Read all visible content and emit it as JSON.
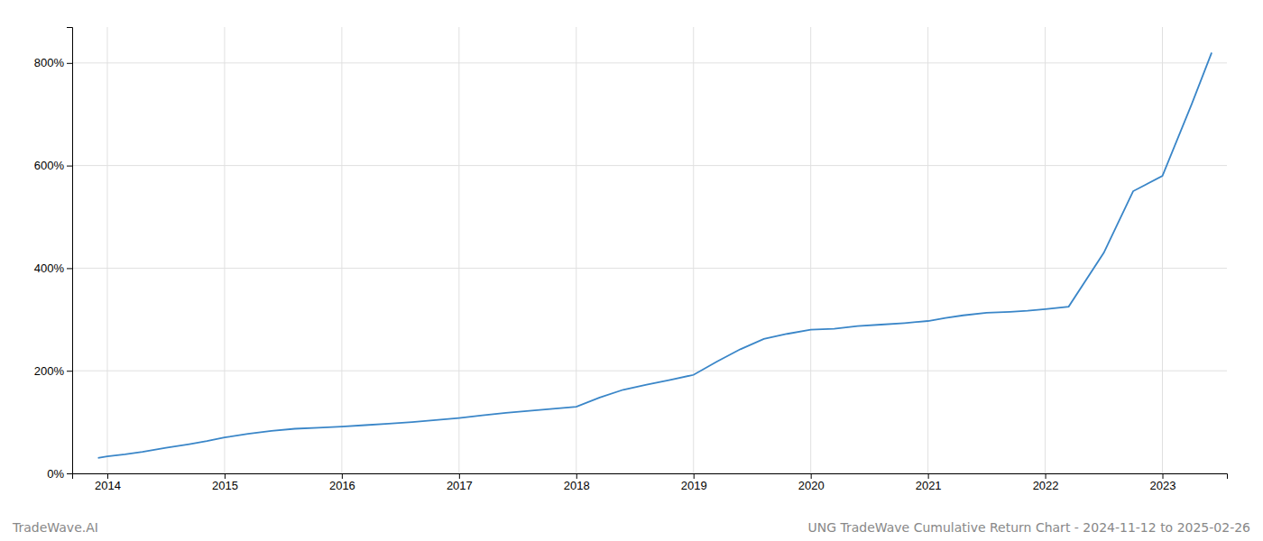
{
  "chart_data": {
    "type": "line",
    "x": [
      2013.92,
      2014.0,
      2014.15,
      2014.3,
      2014.5,
      2014.7,
      2014.85,
      2015.0,
      2015.2,
      2015.4,
      2015.6,
      2015.8,
      2016.0,
      2016.2,
      2016.4,
      2016.6,
      2016.8,
      2017.0,
      2017.2,
      2017.4,
      2017.6,
      2017.8,
      2018.0,
      2018.2,
      2018.4,
      2018.6,
      2018.8,
      2019.0,
      2019.2,
      2019.4,
      2019.6,
      2019.8,
      2020.0,
      2020.2,
      2020.4,
      2020.6,
      2020.8,
      2021.0,
      2021.15,
      2021.3,
      2021.5,
      2021.7,
      2021.85,
      2022.0,
      2022.2,
      2022.5,
      2022.75,
      2023.0,
      2023.25,
      2023.42
    ],
    "values": [
      30,
      33,
      37,
      42,
      50,
      57,
      63,
      70,
      77,
      83,
      87,
      89,
      91,
      94,
      97,
      100,
      104,
      108,
      113,
      118,
      122,
      126,
      130,
      148,
      163,
      173,
      182,
      192,
      218,
      242,
      262,
      272,
      280,
      282,
      287,
      290,
      293,
      297,
      303,
      308,
      313,
      315,
      317,
      320,
      325,
      430,
      550,
      580,
      720,
      820
    ],
    "color": "#3a86c8",
    "xlim": [
      2013.7,
      2023.55
    ],
    "xticks": [
      2014,
      2015,
      2016,
      2017,
      2018,
      2019,
      2020,
      2021,
      2022,
      2023
    ],
    "ylim": [
      0,
      870
    ],
    "yticks": [
      {
        "value": 0,
        "label": "0%"
      },
      {
        "value": 200,
        "label": "200%"
      },
      {
        "value": 400,
        "label": "400%"
      },
      {
        "value": 600,
        "label": "600%"
      },
      {
        "value": 800,
        "label": "800%"
      }
    ],
    "grid": true,
    "annotations": [
      "TradeWave.AI",
      "UNG TradeWave Cumulative Return Chart - 2024-11-12 to 2025-02-26"
    ]
  }
}
